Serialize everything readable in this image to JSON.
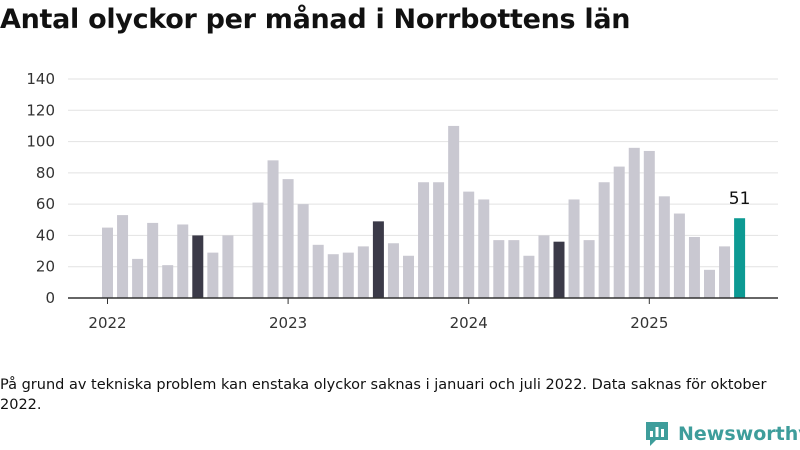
{
  "chart_data": {
    "type": "bar",
    "title": "Antal olyckor per månad i Norrbottens län",
    "xlabel": "",
    "ylabel": "",
    "ylim": [
      0,
      140
    ],
    "yticks": [
      0,
      20,
      40,
      60,
      80,
      100,
      120,
      140
    ],
    "grid": true,
    "x_tick_labels": [
      {
        "label": "2022",
        "month": "2022-01"
      },
      {
        "label": "2023",
        "month": "2023-01"
      },
      {
        "label": "2024",
        "month": "2024-01"
      },
      {
        "label": "2025",
        "month": "2025-01"
      }
    ],
    "months": [
      "2022-01",
      "2022-02",
      "2022-03",
      "2022-04",
      "2022-05",
      "2022-06",
      "2022-07",
      "2022-08",
      "2022-09",
      "2022-10",
      "2022-11",
      "2022-12",
      "2023-01",
      "2023-02",
      "2023-03",
      "2023-04",
      "2023-05",
      "2023-06",
      "2023-07",
      "2023-08",
      "2023-09",
      "2023-10",
      "2023-11",
      "2023-12",
      "2024-01",
      "2024-02",
      "2024-03",
      "2024-04",
      "2024-05",
      "2024-06",
      "2024-07",
      "2024-08",
      "2024-09",
      "2024-10",
      "2024-11",
      "2024-12",
      "2025-01",
      "2025-02",
      "2025-03",
      "2025-04",
      "2025-05",
      "2025-06",
      "2025-07"
    ],
    "values": [
      45,
      53,
      25,
      48,
      21,
      47,
      40,
      29,
      40,
      null,
      61,
      88,
      76,
      60,
      34,
      28,
      29,
      33,
      49,
      35,
      27,
      74,
      74,
      110,
      68,
      63,
      37,
      37,
      27,
      40,
      36,
      63,
      37,
      74,
      84,
      96,
      94,
      65,
      54,
      39,
      18,
      33,
      51
    ],
    "highlight_months": [
      "2022-07",
      "2023-07",
      "2024-07"
    ],
    "current_month": "2025-07",
    "value_label": {
      "month": "2025-07",
      "text": "51"
    },
    "colors": {
      "default": "#c9c8d1",
      "highlight": "#3b3a48",
      "current": "#0d9a93",
      "grid": "#e2e2e2",
      "axis": "#333333"
    }
  },
  "footnote": "På grund av tekniska problem kan enstaka olyckor saknas i januari och juli 2022. Data saknas för oktober 2022.",
  "brand": {
    "name": "Newsworthy",
    "logo_icon": "bar-chart-speech-bubble-icon",
    "color": "#3e9d9b"
  }
}
